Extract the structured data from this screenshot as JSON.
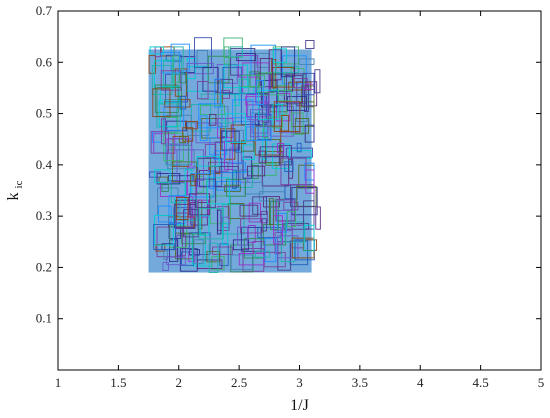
{
  "chart_data": {
    "type": "scatter",
    "title": "",
    "xlabel": "1/J",
    "ylabel_main": "k",
    "ylabel_sub": "ic",
    "xlim": [
      1,
      5
    ],
    "ylim": [
      0,
      0.7
    ],
    "xticks": [
      1,
      1.5,
      2,
      2.5,
      3,
      3.5,
      4,
      4.5,
      5
    ],
    "yticks": [
      0.1,
      0.2,
      0.3,
      0.4,
      0.5,
      0.6,
      0.7
    ],
    "xtick_labels": [
      "1",
      "1.5",
      "2",
      "2.5",
      "3",
      "3.5",
      "4",
      "4.5",
      "5"
    ],
    "ytick_labels": [
      "0.1",
      "0.2",
      "0.3",
      "0.4",
      "0.5",
      "0.6",
      "0.7"
    ],
    "grid": false,
    "legend": "none",
    "fill_region": {
      "x": [
        1.75,
        3.1
      ],
      "y": [
        0.19,
        0.625
      ],
      "color": "#5b9bd5"
    },
    "boxes": {
      "count": 320,
      "x_range": [
        1.75,
        3.2
      ],
      "y_range": [
        0.19,
        0.65
      ],
      "width_range": [
        0.03,
        0.22
      ],
      "height_range": [
        0.01,
        0.06
      ],
      "colors": [
        "#2b2f8f",
        "#3a4fb5",
        "#1f5fbf",
        "#5a2d82",
        "#7b3fa0",
        "#2e8b57",
        "#3cb371",
        "#20b2aa",
        "#4682b4",
        "#6a5acd",
        "#8b4513",
        "#556b2f",
        "#1e90ff",
        "#00ced1",
        "#9932cc",
        "#483d8b"
      ],
      "seed": 7
    }
  }
}
